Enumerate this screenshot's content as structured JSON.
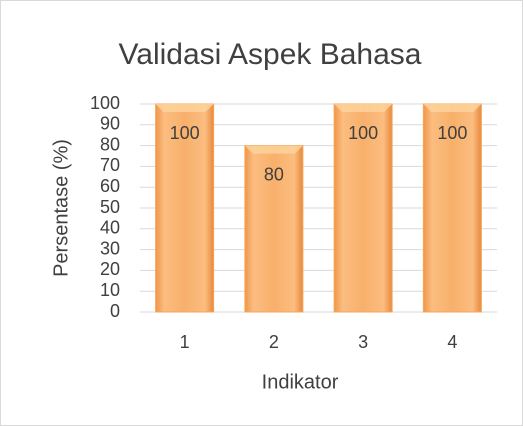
{
  "chart_data": {
    "type": "bar",
    "title": "Validasi Aspek Bahasa",
    "x_label": "Indikator",
    "y_label": "Persentase (%)",
    "categories": [
      "1",
      "2",
      "3",
      "4"
    ],
    "values": [
      100,
      80,
      100,
      100
    ],
    "color": "#f5a55a",
    "ylim": [
      0,
      100
    ],
    "yticks": [
      0,
      10,
      20,
      30,
      40,
      50,
      60,
      70,
      80,
      90,
      100
    ],
    "grid": true
  }
}
